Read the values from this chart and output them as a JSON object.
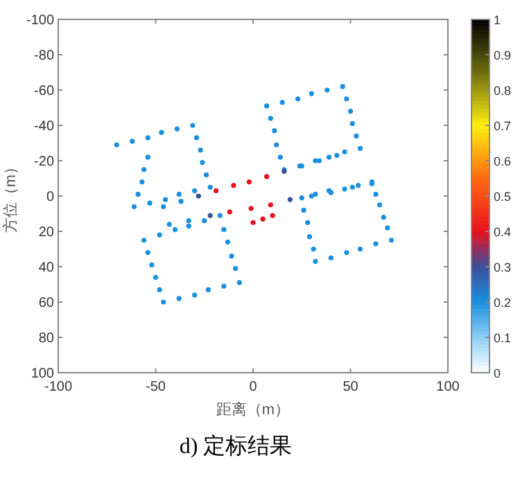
{
  "chart_data": {
    "type": "scatter",
    "x": [
      -70,
      -62,
      -54,
      -47,
      -39,
      -31,
      -29,
      -27,
      -26,
      -24,
      -22,
      -30,
      -38,
      -45,
      -53,
      -61,
      -59,
      -57,
      -56,
      -54,
      7,
      15,
      23,
      30,
      38,
      46,
      48,
      50,
      51,
      53,
      55,
      47,
      39,
      32,
      24,
      16,
      14,
      12,
      11,
      9,
      -56,
      -48,
      -40,
      -33,
      -25,
      -17,
      -15,
      -13,
      -11,
      -9,
      -7,
      -15,
      -23,
      -30,
      -38,
      -46,
      -48,
      -50,
      -52,
      -54,
      25,
      32,
      39,
      47,
      54,
      61,
      63,
      65,
      67,
      69,
      71,
      63,
      55,
      48,
      40,
      32,
      31,
      29,
      28,
      26,
      -46,
      -37,
      -28,
      -19,
      -10,
      -2,
      7,
      16,
      25,
      34,
      43,
      -43,
      -33,
      -22,
      -12,
      -1,
      9,
      19,
      30,
      40,
      51,
      61,
      0,
      5,
      10
    ],
    "values": [
      -29,
      -31,
      -33,
      -36,
      -38,
      -40,
      -33,
      -26,
      -19,
      -12,
      -5,
      -3,
      -1,
      2,
      4,
      6,
      -1,
      -8,
      -15,
      -22,
      -51,
      -53,
      -55,
      -58,
      -60,
      -62,
      -55,
      -48,
      -41,
      -34,
      -27,
      -25,
      -22,
      -20,
      -17,
      -15,
      -22,
      -29,
      -37,
      -44,
      25,
      22,
      19,
      17,
      14,
      11,
      19,
      26,
      34,
      41,
      49,
      51,
      53,
      56,
      58,
      60,
      53,
      46,
      39,
      32,
      1,
      -1,
      -3,
      -4,
      -6,
      -8,
      -1,
      5,
      12,
      18,
      25,
      27,
      30,
      32,
      35,
      37,
      30,
      23,
      15,
      8,
      6,
      3,
      0,
      -3,
      -6,
      -8,
      -11,
      -14,
      -17,
      -20,
      -23,
      16,
      14,
      11,
      9,
      7,
      5,
      2,
      0,
      -2,
      -5,
      -7,
      15,
      13,
      11
    ],
    "cvalues": [
      0.2,
      0.2,
      0.2,
      0.2,
      0.2,
      0.2,
      0.2,
      0.2,
      0.2,
      0.2,
      0.2,
      0.2,
      0.2,
      0.2,
      0.2,
      0.2,
      0.2,
      0.2,
      0.2,
      0.2,
      0.2,
      0.2,
      0.2,
      0.2,
      0.2,
      0.2,
      0.2,
      0.2,
      0.2,
      0.2,
      0.2,
      0.2,
      0.2,
      0.2,
      0.2,
      0.2,
      0.2,
      0.2,
      0.2,
      0.2,
      0.2,
      0.2,
      0.2,
      0.2,
      0.2,
      0.2,
      0.2,
      0.2,
      0.2,
      0.2,
      0.2,
      0.2,
      0.2,
      0.2,
      0.2,
      0.2,
      0.2,
      0.2,
      0.2,
      0.2,
      0.2,
      0.2,
      0.2,
      0.2,
      0.2,
      0.2,
      0.2,
      0.2,
      0.2,
      0.2,
      0.2,
      0.2,
      0.2,
      0.2,
      0.2,
      0.2,
      0.2,
      0.2,
      0.2,
      0.2,
      0.2,
      0.2,
      0.3,
      0.4,
      0.4,
      0.4,
      0.4,
      0.3,
      0.2,
      0.2,
      0.2,
      0.2,
      0.2,
      0.3,
      0.4,
      0.4,
      0.4,
      0.3,
      0.2,
      0.2,
      0.2,
      0.2,
      0.4,
      0.4,
      0.4
    ],
    "marker": "circle",
    "xlim": [
      -100,
      100
    ],
    "ylim": [
      100,
      -100
    ],
    "xticks": [
      -100,
      -50,
      0,
      50,
      100
    ],
    "yticks": [
      100,
      80,
      60,
      40,
      20,
      0,
      -20,
      -40,
      -60,
      -80,
      -100
    ],
    "clim": [
      0,
      1
    ],
    "cticks": [
      0,
      0.1,
      0.2,
      0.3,
      0.4,
      0.5,
      0.6,
      0.7,
      0.8,
      0.9,
      1
    ],
    "xlabel": "距离（m）",
    "ylabel": "方位（m）",
    "annotations": [
      "d) 定标结果"
    ]
  }
}
